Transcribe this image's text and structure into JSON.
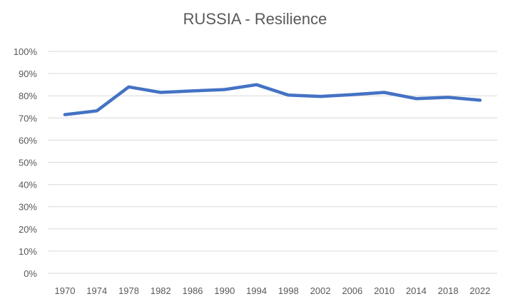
{
  "chart_data": {
    "type": "line",
    "title": "RUSSIA - Resilience",
    "xlabel": "",
    "ylabel": "",
    "x": [
      "1970",
      "1974",
      "1978",
      "1982",
      "1986",
      "1990",
      "1994",
      "1998",
      "2002",
      "2006",
      "2010",
      "2014",
      "2018",
      "2022"
    ],
    "series": [
      {
        "values": [
          0.715,
          0.732,
          0.84,
          0.815,
          0.822,
          0.828,
          0.85,
          0.803,
          0.797,
          0.805,
          0.815,
          0.787,
          0.793,
          0.78
        ]
      }
    ],
    "ylim": [
      0,
      1
    ],
    "yticks": [
      "0%",
      "10%",
      "20%",
      "30%",
      "40%",
      "50%",
      "60%",
      "70%",
      "80%",
      "90%",
      "100%"
    ],
    "grid": true,
    "legend": "none",
    "colors": {
      "line": "#4472C4",
      "grid": "#D9D9D9",
      "text": "#595959"
    }
  }
}
